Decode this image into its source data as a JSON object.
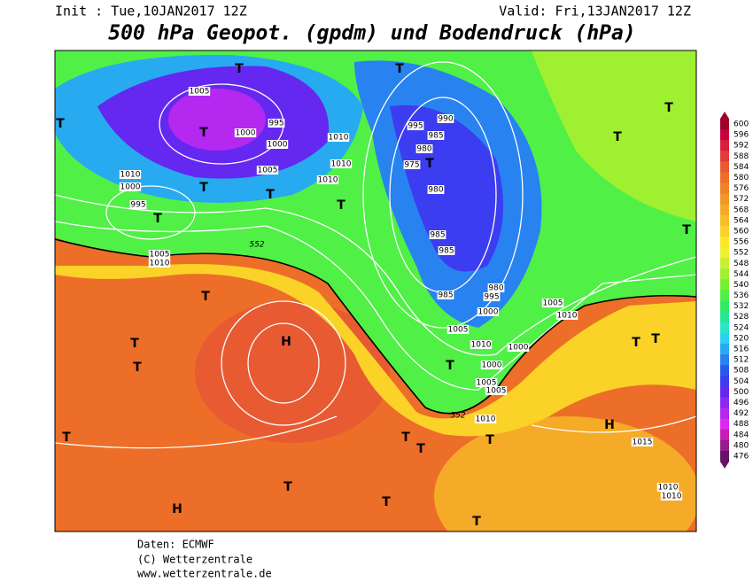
{
  "header": {
    "init": "Init : Tue,10JAN2017 12Z",
    "valid": "Valid: Fri,13JAN2017 12Z",
    "title": "500 hPa Geopot. (gpdm) und Bodendruck (hPa)"
  },
  "colorbar": {
    "ticks": [
      600,
      596,
      592,
      588,
      584,
      580,
      576,
      572,
      568,
      564,
      560,
      556,
      552,
      548,
      544,
      540,
      536,
      532,
      528,
      524,
      520,
      516,
      512,
      508,
      504,
      500,
      496,
      492,
      488,
      484,
      480,
      476
    ],
    "colors": [
      "#a0002a",
      "#c8003c",
      "#d81e3c",
      "#e33c3c",
      "#e85a32",
      "#ec6e28",
      "#f08228",
      "#f39628",
      "#f5aa28",
      "#f8be28",
      "#fad228",
      "#fce628",
      "#f0f032",
      "#c8f032",
      "#a0f032",
      "#78f032",
      "#50f046",
      "#32eb64",
      "#28e696",
      "#28e6c8",
      "#28d2f0",
      "#28aaf0",
      "#2882f0",
      "#285af0",
      "#3c3cf0",
      "#6428f0",
      "#8c28f0",
      "#b428f0",
      "#dc28f0",
      "#c81eb4",
      "#961e8c",
      "#641464"
    ]
  },
  "map": {
    "labels": [
      "T",
      "T",
      "T",
      "T",
      "T",
      "T",
      "T",
      "T",
      "T",
      "T",
      "T",
      "T",
      "T",
      "T",
      "T",
      "T",
      "T",
      "H",
      "H",
      "H",
      "T",
      "T",
      "T",
      "T",
      "T",
      "T",
      "T",
      "T",
      "1005",
      "1000",
      "995",
      "1000",
      "1005",
      "1010",
      "1000",
      "995",
      "1005",
      "1010",
      "1010",
      "1010",
      "1010",
      "995",
      "990",
      "985",
      "980",
      "975",
      "980",
      "985",
      "985",
      "985",
      "980",
      "995",
      "1000",
      "1005",
      "1005",
      "1010",
      "1000",
      "1000",
      "1005",
      "1005",
      "1010",
      "1015",
      "1010",
      "1010",
      "1010",
      "552",
      "552"
    ]
  },
  "footer": {
    "source": "Daten: ECMWF",
    "copyright": "(C) Wetterzentrale",
    "url": "www.wetterzentrale.de"
  }
}
